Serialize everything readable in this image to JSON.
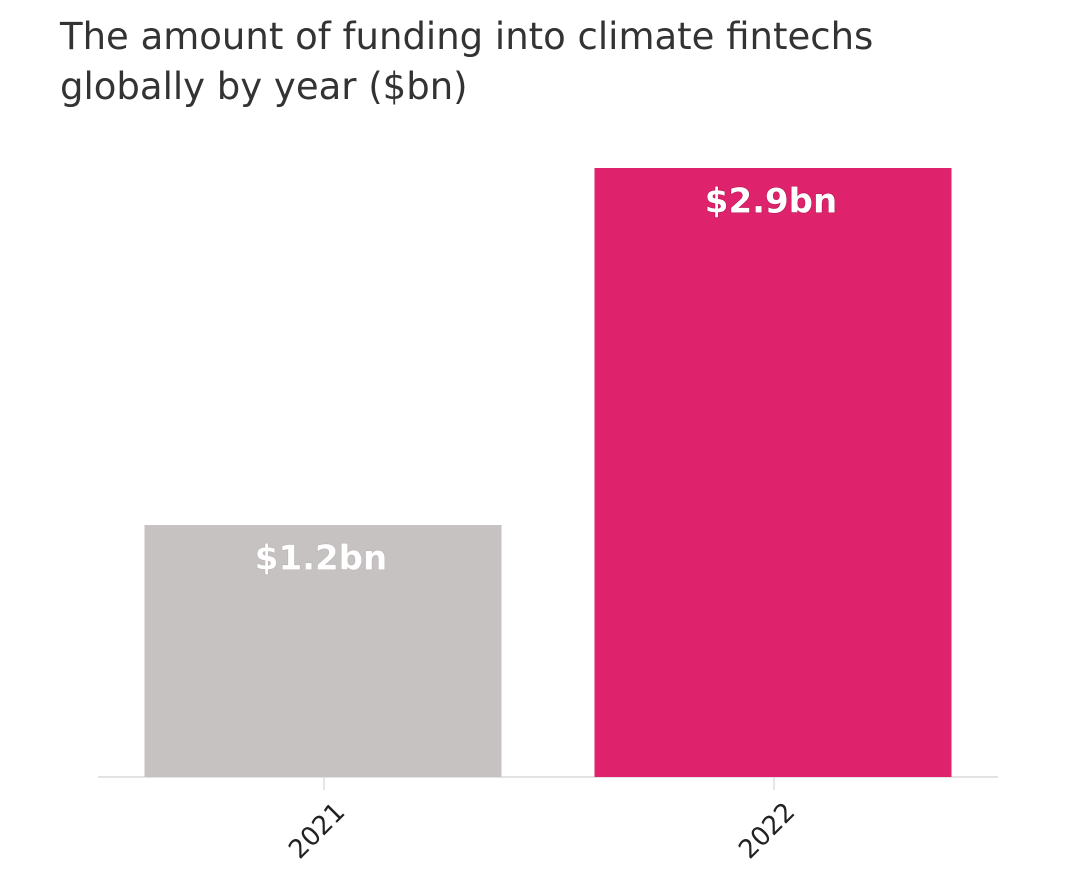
{
  "chart_data": {
    "type": "bar",
    "title": "The amount of funding into climate fintechs globally by year ($bn)",
    "categories": [
      "2021",
      "2022"
    ],
    "values": [
      1.2,
      2.9
    ],
    "value_labels": [
      "$1.2bn",
      "$2.9bn"
    ],
    "colors": [
      "#c6c2c1",
      "#de226b"
    ]
  }
}
